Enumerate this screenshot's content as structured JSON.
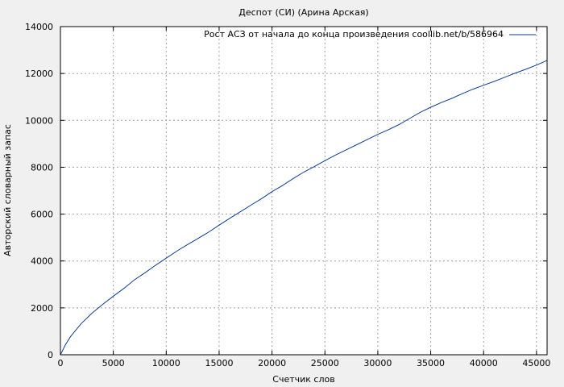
{
  "chart_data": {
    "type": "line",
    "title": "Деспот (СИ) (Арина Арская)",
    "xlabel": "Счетчик слов",
    "ylabel": "Авторский словарный запас",
    "xlim": [
      0,
      46000
    ],
    "ylim": [
      0,
      14000
    ],
    "x_ticks": [
      0,
      5000,
      10000,
      15000,
      20000,
      25000,
      30000,
      35000,
      40000,
      45000
    ],
    "y_ticks": [
      0,
      2000,
      4000,
      6000,
      8000,
      10000,
      12000,
      14000
    ],
    "grid": true,
    "legend_position": "top-right",
    "colors": {
      "series": "#0a3d91",
      "background": "#f0f0f0",
      "plot": "#ffffff"
    },
    "series": [
      {
        "name": "Рост АСЗ от начала до конца произведения coollib.net/b/586964",
        "x": [
          0,
          500,
          1000,
          2000,
          3000,
          4000,
          5000,
          6000,
          7000,
          8000,
          9000,
          10000,
          11000,
          12000,
          13000,
          14000,
          15000,
          16000,
          17000,
          18000,
          19000,
          20000,
          21000,
          22000,
          23000,
          24000,
          25000,
          26000,
          27000,
          28000,
          29000,
          30000,
          31000,
          32000,
          33000,
          34000,
          35000,
          36000,
          37000,
          38000,
          39000,
          40000,
          41000,
          42000,
          43000,
          44000,
          45000,
          46000
        ],
        "y": [
          0,
          450,
          800,
          1350,
          1780,
          2150,
          2500,
          2830,
          3200,
          3500,
          3820,
          4120,
          4420,
          4700,
          4960,
          5230,
          5530,
          5820,
          6100,
          6380,
          6660,
          6960,
          7220,
          7520,
          7790,
          8030,
          8280,
          8520,
          8740,
          8960,
          9180,
          9400,
          9600,
          9820,
          10080,
          10340,
          10560,
          10760,
          10940,
          11140,
          11330,
          11500,
          11660,
          11840,
          12020,
          12180,
          12360,
          12560
        ]
      }
    ]
  }
}
